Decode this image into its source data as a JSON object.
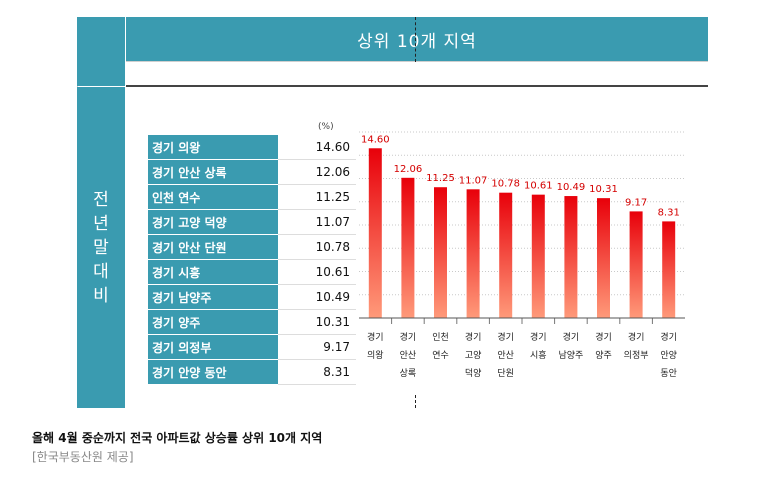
{
  "header": {
    "title": "상위 10개 지역"
  },
  "side_label": [
    "전",
    "년",
    "말",
    "대",
    "비"
  ],
  "unit": "(%)",
  "table": [
    {
      "name": "경기 의왕",
      "value": "14.60"
    },
    {
      "name": "경기 안산 상록",
      "value": "12.06"
    },
    {
      "name": "인천 연수",
      "value": "11.25"
    },
    {
      "name": "경기 고양 덕양",
      "value": "11.07"
    },
    {
      "name": "경기 안산 단원",
      "value": "10.78"
    },
    {
      "name": "경기 시흥",
      "value": "10.61"
    },
    {
      "name": "경기 남양주",
      "value": "10.49"
    },
    {
      "name": "경기 양주",
      "value": "10.31"
    },
    {
      "name": "경기 의정부",
      "value": "9.17"
    },
    {
      "name": "경기 안양 동안",
      "value": "8.31"
    }
  ],
  "chart_data": {
    "type": "bar",
    "categories": [
      [
        "경기",
        "의왕"
      ],
      [
        "경기",
        "안산",
        "상록"
      ],
      [
        "인천",
        "연수"
      ],
      [
        "경기",
        "고양",
        "덕양"
      ],
      [
        "경기",
        "안산",
        "단원"
      ],
      [
        "경기",
        "시흥"
      ],
      [
        "경기",
        "남양주"
      ],
      [
        "경기",
        "양주"
      ],
      [
        "경기",
        "의정부"
      ],
      [
        "경기",
        "안양",
        "동안"
      ]
    ],
    "values": [
      14.6,
      12.06,
      11.25,
      11.07,
      10.78,
      10.61,
      10.49,
      10.31,
      9.17,
      8.31
    ],
    "value_labels": [
      "14.60",
      "12.06",
      "11.25",
      "11.07",
      "10.78",
      "10.61",
      "10.49",
      "10.31",
      "9.17",
      "8.31"
    ],
    "ylim": [
      0,
      16
    ],
    "grid": true,
    "bar_color_top": "#e8000a",
    "bar_color_bottom": "#ff9a7a",
    "label_color": "#d40000"
  },
  "caption": "올해 4월 중순까지 전국 아파트값 상승률 상위 10개 지역",
  "source": "[한국부동산원 제공]"
}
